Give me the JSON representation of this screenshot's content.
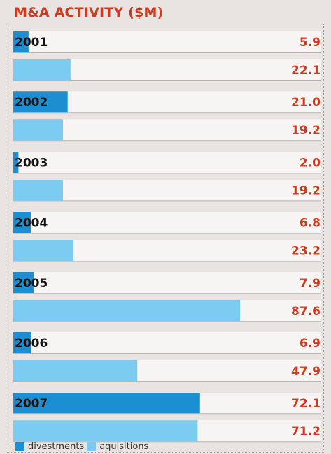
{
  "chart_data": {
    "type": "bar",
    "orientation": "horizontal",
    "title": "M&A ACTIVITY ($M)",
    "categories": [
      "2001",
      "2002",
      "2003",
      "2004",
      "2005",
      "2006",
      "2007"
    ],
    "series": [
      {
        "name": "divestments",
        "values": [
          5.9,
          21.0,
          2.0,
          6.8,
          7.9,
          6.9,
          72.1
        ],
        "color": "#1b8fd1"
      },
      {
        "name": "aquisitions",
        "values": [
          22.1,
          19.2,
          19.2,
          23.2,
          87.6,
          47.9,
          71.2
        ],
        "color": "#7ccbf0"
      }
    ],
    "value_labels": [
      [
        "5.9",
        "22.1"
      ],
      [
        "21.0",
        "19.2"
      ],
      [
        "2.0",
        "19.2"
      ],
      [
        "6.8",
        "23.2"
      ],
      [
        "7.9",
        "87.6"
      ],
      [
        "6.9",
        "47.9"
      ],
      [
        "72.1",
        "71.2"
      ]
    ],
    "xlim": [
      0,
      100
    ],
    "grid": false,
    "legend": "bottom-left",
    "colors": {
      "title": "#cc3a1f",
      "value_label": "#cc3a1f",
      "category_label": "#111111",
      "track": "#f7f5f4",
      "track_line": "#b9b4b1",
      "background": "#e9e4e1"
    }
  }
}
